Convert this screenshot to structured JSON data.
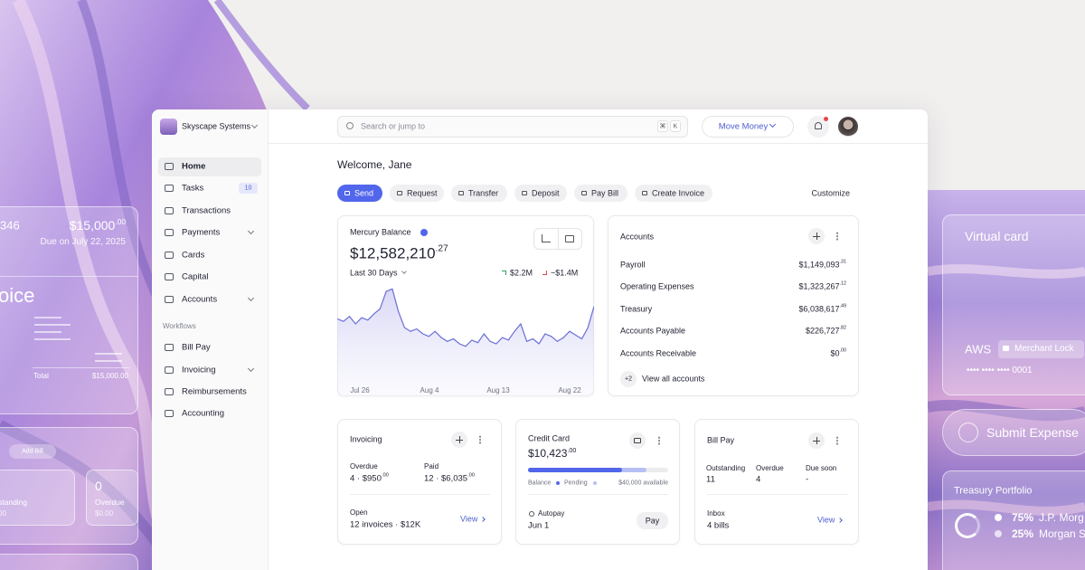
{
  "background_left": {
    "bill_number": "346",
    "bill_amount": "$15,000",
    "bill_amount_cents": ".00",
    "bill_due": "Due on July 22, 2025",
    "invoice_title": "oice",
    "invoice_total_label": "Total",
    "invoice_total": "$15,000.00",
    "add_bill": "Add Bill",
    "outstanding_label": "standing",
    "outstanding_amount": "00",
    "overdue_count": "0",
    "overdue_label": "Overdue",
    "overdue_amount": "$0.00"
  },
  "background_right": {
    "virtual_card": "Virtual card",
    "card_vendor": "AWS",
    "merchant_lock": "Merchant Lock",
    "card_number": "•••• •••• •••• 0001",
    "submit_expense": "Submit Expense",
    "treasury_title": "Treasury Portfolio",
    "holdings": [
      {
        "share": "75%",
        "name": "J.P. Morg"
      },
      {
        "share": "25%",
        "name": "Morgan S"
      }
    ]
  },
  "sidebar": {
    "org": "Skyscape Systems",
    "nav": [
      {
        "label": "Home"
      },
      {
        "label": "Tasks",
        "badge": "10"
      },
      {
        "label": "Transactions"
      },
      {
        "label": "Payments"
      },
      {
        "label": "Cards"
      },
      {
        "label": "Capital"
      },
      {
        "label": "Accounts"
      }
    ],
    "section": "Workflows",
    "workflows": [
      {
        "label": "Bill Pay"
      },
      {
        "label": "Invoicing"
      },
      {
        "label": "Reimbursements"
      },
      {
        "label": "Accounting"
      }
    ]
  },
  "topbar": {
    "search_placeholder": "Search or jump to",
    "shortcut_keys": [
      "⌘",
      "K"
    ],
    "move_money": "Move Money"
  },
  "welcome": "Welcome, Jane",
  "actions": [
    "Send",
    "Request",
    "Transfer",
    "Deposit",
    "Pay Bill",
    "Create Invoice"
  ],
  "customize": "Customize",
  "balance_card": {
    "title": "Mercury Balance",
    "amount": "$12,582,210",
    "cents": ".27",
    "period": "Last 30 Days",
    "inflow": "$2.2M",
    "outflow": "−$1.4M",
    "chart": {
      "type": "line",
      "x_labels": [
        "Jul 26",
        "Aug 4",
        "Aug 13",
        "Aug 22"
      ],
      "ylim": [
        0,
        100
      ],
      "values": [
        62,
        60,
        64,
        58,
        63,
        61,
        66,
        70,
        84,
        86,
        68,
        55,
        52,
        54,
        50,
        48,
        52,
        47,
        44,
        46,
        42,
        40,
        45,
        43,
        50,
        44,
        42,
        47,
        45,
        52,
        58,
        44,
        46,
        42,
        50,
        48,
        44,
        47,
        52,
        49,
        46,
        55,
        72
      ]
    }
  },
  "accounts_card": {
    "title": "Accounts",
    "rows": [
      {
        "name": "Payroll",
        "amount": "$1,149,093",
        "cents": ".31"
      },
      {
        "name": "Operating Expenses",
        "amount": "$1,323,267",
        "cents": ".12"
      },
      {
        "name": "Treasury",
        "amount": "$6,038,617",
        "cents": ".49"
      },
      {
        "name": "Accounts Payable",
        "amount": "$226,727",
        "cents": ".82"
      },
      {
        "name": "Accounts Receivable",
        "amount": "$0",
        "cents": ".00"
      }
    ],
    "more_count": "+2",
    "view_all": "View all accounts"
  },
  "invoicing_card": {
    "title": "Invoicing",
    "overdue_label": "Overdue",
    "overdue_value": "4 · $950",
    "overdue_cents": ".00",
    "paid_label": "Paid",
    "paid_value": "12 · $6,035",
    "paid_cents": ".00",
    "open_label": "Open",
    "open_value": "12 invoices · $12K",
    "view": "View"
  },
  "credit_card": {
    "title": "Credit Card",
    "amount": "$10,423",
    "cents": ".00",
    "balance_label": "Balance",
    "pending_label": "Pending",
    "available": "$40,000 available",
    "autopay_label": "Autopay",
    "autopay_date": "Jun 1",
    "pay": "Pay"
  },
  "bill_pay_card": {
    "title": "Bill Pay",
    "stats": [
      {
        "label": "Outstanding",
        "value": "11"
      },
      {
        "label": "Overdue",
        "value": "4"
      },
      {
        "label": "Due soon",
        "value": "-"
      }
    ],
    "inbox_label": "Inbox",
    "inbox_value": "4 bills",
    "view": "View"
  }
}
